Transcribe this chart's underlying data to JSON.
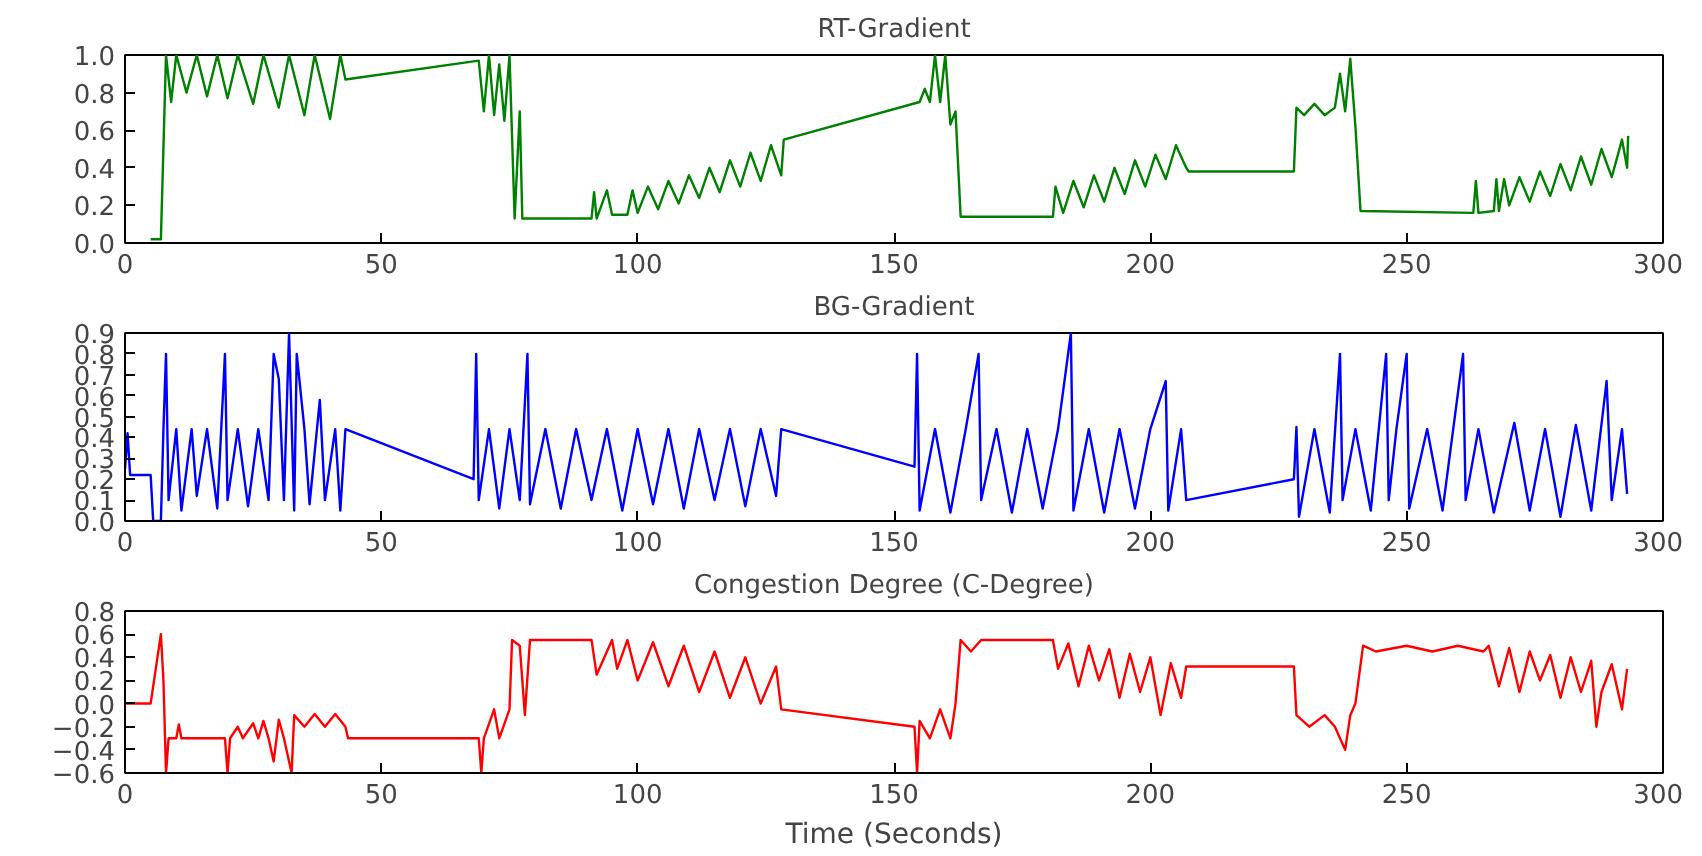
{
  "chart_data": [
    {
      "type": "line",
      "title": "RT-Gradient",
      "xlim": [
        0,
        300
      ],
      "ylim": [
        0,
        1
      ],
      "xticks": [
        0,
        50,
        100,
        150,
        200,
        250,
        300
      ],
      "yticks": [
        {
          "value": 0,
          "label": "0.0"
        },
        {
          "value": 0.2,
          "label": "0.2"
        },
        {
          "value": 0.4,
          "label": "0.4"
        },
        {
          "value": 0.6,
          "label": "0.6"
        },
        {
          "value": 0.8,
          "label": "0.8"
        },
        {
          "value": 1,
          "label": "1.0"
        }
      ],
      "grid": false,
      "series": [
        {
          "color": "#008000",
          "x": [
            5,
            7,
            8,
            9,
            10,
            12,
            14,
            16,
            18,
            20,
            22,
            25,
            27,
            30,
            32,
            35,
            37,
            40,
            42,
            43,
            69,
            70,
            71,
            72,
            73,
            74,
            75,
            76,
            77,
            77.5,
            91,
            91.5,
            92,
            94,
            95,
            98,
            99,
            100,
            102,
            104,
            106,
            108,
            110,
            112,
            114,
            116,
            118,
            120,
            122,
            124,
            126,
            128,
            128.5,
            155,
            156,
            157,
            158,
            159,
            160,
            161,
            162,
            163,
            181,
            181.5,
            183,
            185,
            187,
            189,
            191,
            193,
            195,
            197,
            199,
            201,
            203,
            205,
            207,
            207.5,
            228,
            228.5,
            230,
            232,
            234,
            236,
            237,
            238,
            239,
            240,
            241,
            263,
            263.5,
            264,
            267,
            267.5,
            268,
            269,
            270,
            272,
            274,
            276,
            278,
            280,
            282,
            284,
            286,
            288,
            290,
            292,
            293,
            293.2
          ],
          "values": [
            0.02,
            0.02,
            1.0,
            0.75,
            1.0,
            0.8,
            1.0,
            0.78,
            1.0,
            0.77,
            1.0,
            0.74,
            1.0,
            0.72,
            1.0,
            0.68,
            1.0,
            0.66,
            1.0,
            0.87,
            0.97,
            0.7,
            1.0,
            0.68,
            0.95,
            0.65,
            1.0,
            0.13,
            0.7,
            0.13,
            0.13,
            0.27,
            0.13,
            0.28,
            0.15,
            0.15,
            0.28,
            0.16,
            0.3,
            0.18,
            0.33,
            0.21,
            0.36,
            0.24,
            0.4,
            0.27,
            0.44,
            0.3,
            0.48,
            0.33,
            0.52,
            0.36,
            0.55,
            0.75,
            0.82,
            0.75,
            1.0,
            0.75,
            1.0,
            0.63,
            0.7,
            0.14,
            0.14,
            0.3,
            0.16,
            0.33,
            0.19,
            0.36,
            0.22,
            0.4,
            0.26,
            0.44,
            0.3,
            0.47,
            0.34,
            0.52,
            0.4,
            0.38,
            0.38,
            0.72,
            0.68,
            0.74,
            0.68,
            0.72,
            0.9,
            0.7,
            0.98,
            0.62,
            0.17,
            0.16,
            0.33,
            0.16,
            0.17,
            0.34,
            0.17,
            0.34,
            0.2,
            0.35,
            0.22,
            0.38,
            0.25,
            0.42,
            0.28,
            0.46,
            0.31,
            0.5,
            0.35,
            0.55,
            0.4,
            0.57
          ]
        }
      ]
    },
    {
      "type": "line",
      "title": "BG-Gradient",
      "xlim": [
        0,
        300
      ],
      "ylim": [
        0,
        0.9
      ],
      "xticks": [
        0,
        50,
        100,
        150,
        200,
        250,
        300
      ],
      "yticks": [
        {
          "value": 0,
          "label": "0.0"
        },
        {
          "value": 0.1,
          "label": "0.1"
        },
        {
          "value": 0.2,
          "label": "0.2"
        },
        {
          "value": 0.3,
          "label": "0.3"
        },
        {
          "value": 0.4,
          "label": "0.4"
        },
        {
          "value": 0.5,
          "label": "0.5"
        },
        {
          "value": 0.6,
          "label": "0.6"
        },
        {
          "value": 0.7,
          "label": "0.7"
        },
        {
          "value": 0.8,
          "label": "0.8"
        },
        {
          "value": 0.9,
          "label": "0.9"
        }
      ],
      "grid": false,
      "series": [
        {
          "color": "#0000ff",
          "x": [
            0,
            0.5,
            1,
            5,
            5.5,
            7,
            7.5,
            8,
            8.5,
            10,
            11,
            13,
            14,
            16,
            18,
            19.5,
            20,
            22,
            24,
            26,
            28,
            29,
            30,
            31,
            32,
            33,
            33.5,
            35,
            36,
            38,
            39,
            41,
            42,
            43,
            68,
            68.5,
            69,
            71,
            73,
            75,
            77,
            78.5,
            79,
            82,
            85,
            88,
            91,
            94,
            97,
            100,
            103,
            106,
            109,
            112,
            115,
            118,
            121,
            124,
            127,
            128,
            154,
            154.5,
            155,
            158,
            161,
            164,
            166.5,
            167,
            170,
            173,
            176,
            179,
            182,
            184.5,
            185,
            188,
            191,
            194,
            197,
            200,
            203,
            203.5,
            206,
            207,
            228,
            228.5,
            229,
            232,
            235,
            237,
            237.5,
            240,
            243,
            246,
            246.5,
            248,
            250,
            250.5,
            254,
            257,
            261,
            261.5,
            264,
            267,
            271,
            274,
            277,
            280,
            283,
            286,
            289,
            290,
            292,
            293
          ],
          "values": [
            0.25,
            0.42,
            0.22,
            0.22,
            0.0,
            0.0,
            0.44,
            0.8,
            0.1,
            0.44,
            0.05,
            0.44,
            0.12,
            0.44,
            0.06,
            0.8,
            0.1,
            0.44,
            0.07,
            0.44,
            0.1,
            0.8,
            0.68,
            0.1,
            0.9,
            0.05,
            0.8,
            0.44,
            0.08,
            0.58,
            0.1,
            0.44,
            0.05,
            0.44,
            0.2,
            0.8,
            0.1,
            0.44,
            0.06,
            0.44,
            0.1,
            0.8,
            0.08,
            0.44,
            0.06,
            0.44,
            0.1,
            0.44,
            0.05,
            0.44,
            0.08,
            0.44,
            0.06,
            0.44,
            0.1,
            0.44,
            0.07,
            0.44,
            0.12,
            0.44,
            0.26,
            0.8,
            0.05,
            0.44,
            0.04,
            0.44,
            0.8,
            0.1,
            0.44,
            0.04,
            0.44,
            0.06,
            0.44,
            0.9,
            0.05,
            0.44,
            0.04,
            0.44,
            0.06,
            0.44,
            0.67,
            0.05,
            0.44,
            0.1,
            0.2,
            0.45,
            0.02,
            0.44,
            0.04,
            0.8,
            0.1,
            0.44,
            0.05,
            0.8,
            0.1,
            0.44,
            0.8,
            0.06,
            0.44,
            0.05,
            0.8,
            0.1,
            0.44,
            0.04,
            0.47,
            0.05,
            0.44,
            0.02,
            0.46,
            0.05,
            0.67,
            0.1,
            0.44,
            0.13
          ]
        }
      ]
    },
    {
      "type": "line",
      "title": "Congestion Degree (C-Degree)",
      "xlabel": "Time (Seconds)",
      "xlim": [
        0,
        300
      ],
      "ylim": [
        -0.6,
        0.8
      ],
      "xticks": [
        0,
        50,
        100,
        150,
        200,
        250,
        300
      ],
      "yticks": [
        {
          "value": -0.6,
          "label": "−0.6"
        },
        {
          "value": -0.4,
          "label": "−0.4"
        },
        {
          "value": -0.2,
          "label": "−0.2"
        },
        {
          "value": 0,
          "label": "0.0"
        },
        {
          "value": 0.2,
          "label": "0.2"
        },
        {
          "value": 0.4,
          "label": "0.4"
        },
        {
          "value": 0.6,
          "label": "0.6"
        },
        {
          "value": 0.8,
          "label": "0.8"
        }
      ],
      "grid": false,
      "series": [
        {
          "color": "#ff0000",
          "x": [
            0,
            5,
            6,
            7,
            7.5,
            8,
            8.5,
            10,
            10.5,
            11,
            19.5,
            20,
            20.5,
            22,
            23,
            25,
            26,
            27,
            28,
            29,
            30,
            31,
            32.5,
            33,
            35,
            37,
            39,
            41,
            43,
            43.5,
            69,
            69.5,
            70,
            72,
            73,
            75,
            75.5,
            77,
            78,
            79,
            91,
            92,
            95,
            96,
            98,
            100,
            103,
            106,
            109,
            112,
            115,
            118,
            121,
            124,
            127,
            128,
            154,
            154.5,
            155,
            157,
            159,
            161,
            162,
            163,
            165,
            167,
            181,
            182,
            184,
            186,
            188,
            190,
            192,
            194,
            196,
            198,
            200,
            202,
            204,
            206,
            207,
            228,
            228.5,
            231,
            234,
            236,
            238,
            239,
            240,
            241.5,
            244,
            250,
            255,
            260,
            265,
            266,
            268,
            270,
            272,
            274,
            276,
            278,
            280,
            282,
            284,
            286,
            287,
            288,
            290,
            292,
            293
          ],
          "values": [
            0,
            0,
            0.3,
            0.6,
            0.2,
            -0.6,
            -0.3,
            -0.3,
            -0.18,
            -0.3,
            -0.3,
            -0.6,
            -0.3,
            -0.2,
            -0.3,
            -0.17,
            -0.3,
            -0.15,
            -0.3,
            -0.5,
            -0.14,
            -0.3,
            -0.6,
            -0.1,
            -0.2,
            -0.09,
            -0.2,
            -0.09,
            -0.2,
            -0.3,
            -0.3,
            -0.6,
            -0.3,
            -0.05,
            -0.3,
            -0.05,
            0.55,
            0.5,
            -0.1,
            0.55,
            0.55,
            0.25,
            0.55,
            0.3,
            0.55,
            0.2,
            0.53,
            0.15,
            0.5,
            0.1,
            0.45,
            0.05,
            0.4,
            0.0,
            0.32,
            -0.05,
            -0.2,
            -0.6,
            -0.15,
            -0.3,
            -0.05,
            -0.3,
            0.0,
            0.55,
            0.45,
            0.55,
            0.55,
            0.3,
            0.52,
            0.15,
            0.5,
            0.2,
            0.47,
            0.05,
            0.43,
            0.1,
            0.4,
            -0.1,
            0.35,
            0.05,
            0.32,
            0.32,
            -0.1,
            -0.2,
            -0.1,
            -0.2,
            -0.4,
            -0.1,
            0.0,
            0.5,
            0.45,
            0.5,
            0.45,
            0.5,
            0.45,
            0.5,
            0.15,
            0.48,
            0.1,
            0.45,
            0.2,
            0.42,
            0.05,
            0.4,
            0.1,
            0.37,
            -0.2,
            0.1,
            0.34,
            -0.05,
            0.3
          ]
        }
      ]
    }
  ]
}
